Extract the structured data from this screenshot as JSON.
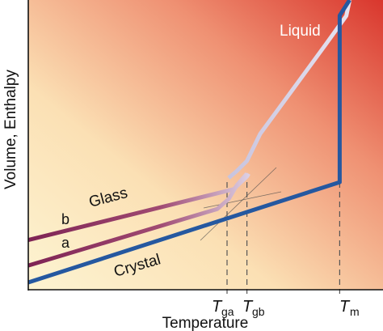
{
  "chart_data": {
    "type": "line",
    "title": "",
    "xlabel": "Temperature",
    "ylabel": "Volume, Enthalpy",
    "xlim": [
      0,
      100
    ],
    "ylim": [
      0,
      100
    ],
    "x_ticks": [
      {
        "key": "tga",
        "base": "T",
        "sub": "ga",
        "value": 60
      },
      {
        "key": "tgb",
        "base": "T",
        "sub": "gb",
        "value": 66
      },
      {
        "key": "tm",
        "base": "T",
        "sub": "m",
        "value": 94
      }
    ],
    "series": [
      {
        "name": "Liquid",
        "color": "#d9d4e8",
        "points": [
          [
            60.5,
            37
          ],
          [
            63,
            39.5
          ],
          [
            66,
            43
          ],
          [
            70,
            52.6
          ],
          [
            80,
            68.6
          ],
          [
            90,
            84.6
          ],
          [
            96,
            94.4
          ],
          [
            97,
            100
          ]
        ]
      },
      {
        "name": "Glass",
        "key": "glass-b",
        "color": "#8c2a5a",
        "points": [
          [
            0,
            15
          ],
          [
            62,
            33
          ],
          [
            66,
            37.5
          ],
          [
            66.5,
            38.5
          ]
        ]
      },
      {
        "name": "",
        "key": "glass-a",
        "color": "#8c2a5a",
        "points": [
          [
            0,
            6
          ],
          [
            57,
            26
          ],
          [
            60.5,
            29.5
          ],
          [
            63,
            34.5
          ],
          [
            66,
            38.5
          ]
        ]
      },
      {
        "name": "Crystal",
        "color": "#2558a0",
        "points": [
          [
            0,
            0
          ],
          [
            94,
            35.5
          ],
          [
            94,
            94.5
          ],
          [
            97,
            100
          ]
        ]
      }
    ],
    "annotations": [
      {
        "key": "liquid",
        "text": "Liquid"
      },
      {
        "key": "glass",
        "text": "Glass"
      },
      {
        "key": "crystal",
        "text": "Crystal"
      },
      {
        "key": "b",
        "text": "b"
      },
      {
        "key": "a",
        "text": "a"
      }
    ],
    "colors": {
      "axis": "#111111",
      "bg_light": "#fdf3cf",
      "bg_dark": "#d9362d"
    }
  }
}
